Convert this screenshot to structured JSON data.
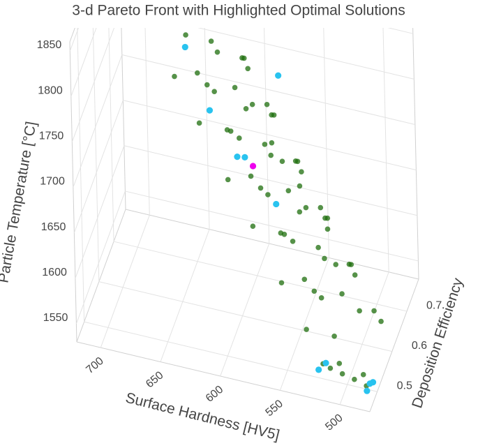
{
  "chart_data": {
    "type": "scatter3d",
    "title": "3-d Pareto Front with Highlighted Optimal Solutions",
    "xlabel": "Surface Hardness [HV5]",
    "ylabel": "Deposition Efficiency",
    "zlabel": "Particle Temperature [°C]",
    "xlim": [
      475,
      720
    ],
    "ylim": [
      0.45,
      0.78
    ],
    "zlim": [
      1530,
      1860
    ],
    "xticks": [
      500,
      550,
      600,
      650,
      700
    ],
    "yticks": [
      0.5,
      0.6,
      0.7
    ],
    "zticks": [
      1550,
      1600,
      1650,
      1700,
      1750,
      1800,
      1850
    ],
    "grid": true,
    "series": [
      {
        "color": "#1e6e0c",
        "x": [
          481,
          510,
          528,
          506,
          530,
          508,
          552,
          531,
          510,
          550,
          524,
          553,
          571,
          549,
          573,
          551,
          595,
          574,
          553,
          593,
          567,
          596,
          614,
          592,
          616,
          594,
          638,
          617,
          488,
          532,
          512,
          491,
          530,
          505,
          534,
          551,
          530,
          554,
          531,
          575,
          555,
          534,
          573,
          548,
          577,
          594,
          573,
          597,
          574,
          618,
          598,
          577,
          616,
          591,
          620,
          637,
          480,
          490,
          500,
          510,
          516,
          485,
          505,
          540,
          560,
          580
        ],
        "y": [
          0.58,
          0.5,
          0.56,
          0.61,
          0.53,
          0.59,
          0.49,
          0.57,
          0.52,
          0.6,
          0.58,
          0.5,
          0.56,
          0.61,
          0.53,
          0.59,
          0.49,
          0.57,
          0.52,
          0.6,
          0.58,
          0.5,
          0.56,
          0.61,
          0.53,
          0.59,
          0.49,
          0.57,
          0.59,
          0.49,
          0.57,
          0.52,
          0.6,
          0.58,
          0.5,
          0.56,
          0.61,
          0.53,
          0.59,
          0.49,
          0.57,
          0.52,
          0.6,
          0.58,
          0.5,
          0.56,
          0.61,
          0.53,
          0.59,
          0.49,
          0.57,
          0.52,
          0.6,
          0.58,
          0.5,
          0.56,
          0.47,
          0.47,
          0.47,
          0.47,
          0.47,
          0.49,
          0.49,
          0.7,
          0.68,
          0.66
        ],
        "z": [
          1570,
          1580,
          1590,
          1600,
          1610,
          1620,
          1630,
          1640,
          1650,
          1660,
          1670,
          1680,
          1690,
          1700,
          1710,
          1720,
          1730,
          1740,
          1750,
          1760,
          1770,
          1780,
          1790,
          1800,
          1810,
          1820,
          1830,
          1840,
          1575,
          1585,
          1595,
          1605,
          1615,
          1625,
          1635,
          1645,
          1655,
          1665,
          1675,
          1685,
          1695,
          1705,
          1715,
          1725,
          1735,
          1745,
          1755,
          1765,
          1775,
          1785,
          1795,
          1805,
          1815,
          1825,
          1835,
          1845,
          1548,
          1552,
          1555,
          1558,
          1561,
          1550,
          1556,
          1600,
          1650,
          1700
        ]
      },
      {
        "color": "#29c3ef",
        "x": [
          634,
          564,
          615,
          593,
          587,
          562,
          518,
          513,
          479,
          478,
          476
        ],
        "y": [
          0.532,
          0.59,
          0.535,
          0.537,
          0.54,
          0.543,
          0.456,
          0.465,
          0.465,
          0.477,
          0.482
        ],
        "z": [
          1845,
          1810,
          1780,
          1735,
          1735,
          1690,
          1560,
          1565,
          1545,
          1548,
          1548
        ]
      },
      {
        "color": "#ee00ee",
        "x": [
          581
        ],
        "y": [
          0.545
        ],
        "z": [
          1725
        ]
      }
    ]
  }
}
